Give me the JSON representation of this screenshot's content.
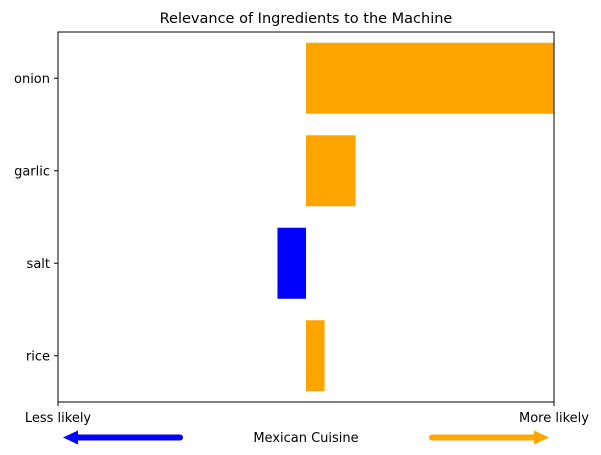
{
  "chart_data": {
    "type": "bar",
    "orientation": "horizontal",
    "title": "Relevance of Ingredients to the Machine",
    "categories": [
      "onion",
      "garlic",
      "salt",
      "rice"
    ],
    "values": [
      1.0,
      0.2,
      -0.115,
      0.075
    ],
    "bar_colors": [
      "#ffa500",
      "#ffa500",
      "#0000ff",
      "#ffa500"
    ],
    "xlim": [
      -1.0,
      1.0
    ],
    "x_tick_labels_shown": false,
    "grid": false,
    "x_end_labels": {
      "left": "Less likely",
      "right": "More likely"
    },
    "xlabel": "Mexican Cuisine",
    "arrows": {
      "left": {
        "direction": "left",
        "color": "#0000ff"
      },
      "right": {
        "direction": "right",
        "color": "#ffa500"
      }
    }
  }
}
